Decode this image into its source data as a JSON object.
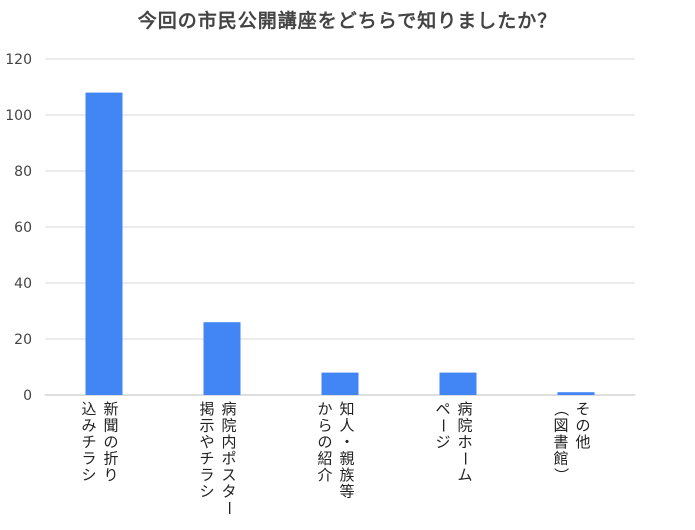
{
  "chart_data": {
    "type": "bar",
    "title": "今回の市民公開講座をどちらで知りましたか？",
    "categories": [
      [
        "新聞の折り",
        "込みチラシ"
      ],
      [
        "病院内ポスター",
        "掲示やチラシ"
      ],
      [
        "知人・親族等",
        "からの紹介"
      ],
      [
        "病院ホーム",
        "ページ"
      ],
      [
        "その他",
        "（図書館）"
      ]
    ],
    "values": [
      108,
      26,
      8,
      8,
      1
    ],
    "ylim": [
      0,
      120
    ],
    "yticks": [
      0,
      20,
      40,
      60,
      80,
      100,
      120
    ],
    "xlabel": "",
    "ylabel": "",
    "grid": true,
    "legend": "none",
    "colors": {
      "bar": "#4285f4",
      "grid": "#d9d9d9",
      "axis": "#bdbdbd"
    }
  }
}
